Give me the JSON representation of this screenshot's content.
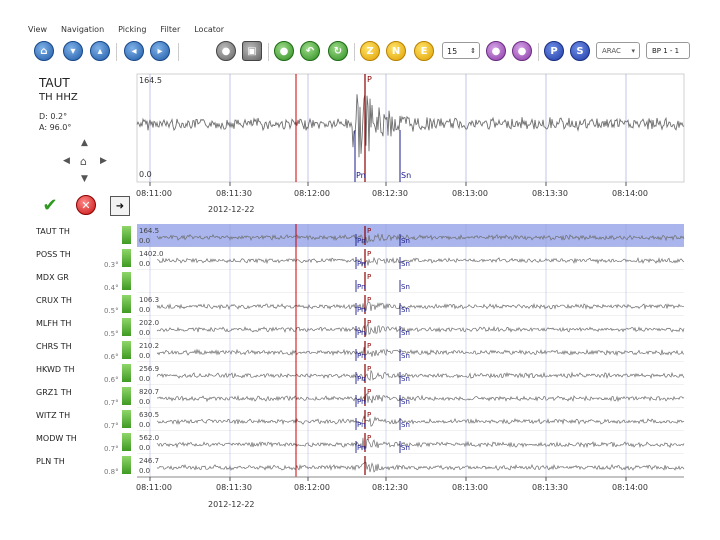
{
  "menu": [
    "View",
    "Navigation",
    "Picking",
    "Filter",
    "Locator"
  ],
  "toolbar": {
    "icons": [
      "home-icon",
      "arrow-down-icon",
      "arrow-up-icon",
      "step-left-icon",
      "step-right-icon",
      "zoom-icon",
      "zoom-select-icon",
      "record-icon",
      "undo-icon",
      "refresh-icon"
    ],
    "comp_z": "Z",
    "comp_n": "N",
    "comp_e": "E",
    "spin_value": "15",
    "pick_p": "P",
    "pick_s": "S",
    "filter_combo": "ARAC",
    "filter_combo2": "BP 1 - 1"
  },
  "station": {
    "name": "TAUT",
    "channel": "TH HHZ",
    "distance": "D: 0.2°",
    "azimuth": "A: 96.0°"
  },
  "main_trace": {
    "amp_top": "164.5",
    "amp_bottom": "0.0",
    "time_ticks": [
      "08:11:00",
      "08:11:30",
      "08:12:00",
      "08:12:30",
      "08:13:00",
      "08:13:30",
      "08:14:00"
    ],
    "date": "2012-12-22",
    "picks": [
      {
        "label": "P",
        "color": "#8b0000"
      },
      {
        "label": "Pn",
        "color": "#1a1a8c"
      },
      {
        "label": "Sn",
        "color": "#1a1a8c"
      }
    ]
  },
  "stations": [
    {
      "name": "TAUT",
      "net": "TH",
      "dist": "",
      "amp_top": "164.5",
      "amp_bot": "0.0",
      "picks": [
        "P",
        "Pn",
        "Sn"
      ],
      "selected": true
    },
    {
      "name": "POSS",
      "net": "TH",
      "dist": "0.3°",
      "amp_top": "1402.0",
      "amp_bot": "0.0",
      "picks": [
        "P",
        "Pn",
        "Sn"
      ],
      "selected": false
    },
    {
      "name": "MDX",
      "net": "GR",
      "dist": "0.4°",
      "amp_top": "",
      "amp_bot": "",
      "picks": [
        "P",
        "Pn",
        "Sn"
      ],
      "selected": false
    },
    {
      "name": "CRUX",
      "net": "TH",
      "dist": "0.5°",
      "amp_top": "106.3",
      "amp_bot": "0.0",
      "picks": [
        "P",
        "Pn",
        "Sn"
      ],
      "selected": false
    },
    {
      "name": "MLFH",
      "net": "TH",
      "dist": "0.5°",
      "amp_top": "202.0",
      "amp_bot": "0.0",
      "picks": [
        "P",
        "Pn",
        "Sn"
      ],
      "selected": false
    },
    {
      "name": "CHRS",
      "net": "TH",
      "dist": "0.6°",
      "amp_top": "210.2",
      "amp_bot": "0.0",
      "picks": [
        "P",
        "Pn",
        "Sn"
      ],
      "selected": false
    },
    {
      "name": "HKWD",
      "net": "TH",
      "dist": "0.6°",
      "amp_top": "256.9",
      "amp_bot": "0.0",
      "picks": [
        "P",
        "Pn",
        "Sn"
      ],
      "selected": false
    },
    {
      "name": "GRZ1",
      "net": "TH",
      "dist": "0.7°",
      "amp_top": "820.7",
      "amp_bot": "0.0",
      "picks": [
        "P",
        "Pn",
        "Sn"
      ],
      "selected": false
    },
    {
      "name": "WITZ",
      "net": "TH",
      "dist": "0.7°",
      "amp_top": "630.5",
      "amp_bot": "0.0",
      "picks": [
        "P",
        "Pn",
        "Sn"
      ],
      "selected": false
    },
    {
      "name": "MODW",
      "net": "TH",
      "dist": "0.7°",
      "amp_top": "562.0",
      "amp_bot": "0.0",
      "picks": [
        "P",
        "Pn",
        "Sn"
      ],
      "selected": false
    },
    {
      "name": "PLN",
      "net": "TH",
      "dist": "0.8°",
      "amp_top": "246.7",
      "amp_bot": "0.0",
      "picks": [
        "P"
      ],
      "selected": false
    }
  ],
  "bottom_axis": {
    "ticks": [
      "08:11:00",
      "08:11:30",
      "08:12:00",
      "08:12:30",
      "08:13:00",
      "08:13:30",
      "08:14:00"
    ],
    "date": "2012-12-22"
  },
  "colors": {
    "selected_row": "#a9b5ec",
    "trace": "#6e6e6e",
    "origin_line": "#cc0000",
    "p_pick": "#8b0000",
    "s_pick": "#1a1a8c",
    "grid": "#9aa0d8"
  }
}
